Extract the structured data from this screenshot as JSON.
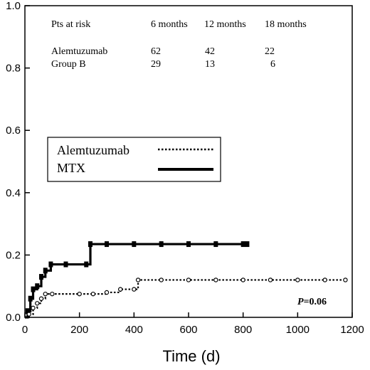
{
  "chart_data": {
    "type": "line",
    "step": true,
    "title": "",
    "xlabel": "Time (d)",
    "ylabel": "",
    "xlim": [
      0,
      1200
    ],
    "ylim": [
      0,
      1.0
    ],
    "xticks": [
      "0",
      "200",
      "400",
      "600",
      "800",
      "1000",
      "1200"
    ],
    "yticks": [
      "0.0",
      "0.2",
      "0.4",
      "0.6",
      "0.8",
      "1.0"
    ],
    "grid": false,
    "legend": {
      "placement": "middle-left",
      "entries": [
        {
          "name": "Alemtuzumab",
          "style": "dotted"
        },
        {
          "name": "MTX",
          "style": "solid"
        }
      ]
    },
    "series": [
      {
        "name": "MTX",
        "style": "solid",
        "x": [
          0,
          10,
          20,
          30,
          45,
          60,
          75,
          95,
          150,
          225,
          240,
          300,
          400,
          500,
          600,
          700,
          800,
          815
        ],
        "y": [
          0,
          0.02,
          0.06,
          0.09,
          0.1,
          0.13,
          0.15,
          0.17,
          0.17,
          0.17,
          0.235,
          0.235,
          0.235,
          0.235,
          0.235,
          0.235,
          0.235,
          0.235
        ]
      },
      {
        "name": "Alemtuzumab",
        "style": "dotted",
        "x": [
          0,
          15,
          30,
          45,
          60,
          75,
          100,
          200,
          250,
          300,
          350,
          400,
          415,
          500,
          600,
          700,
          800,
          900,
          1000,
          1100,
          1175
        ],
        "y": [
          0,
          0.01,
          0.03,
          0.045,
          0.06,
          0.075,
          0.075,
          0.075,
          0.075,
          0.08,
          0.09,
          0.09,
          0.12,
          0.12,
          0.12,
          0.12,
          0.12,
          0.12,
          0.12,
          0.12,
          0.12
        ]
      }
    ],
    "risk_table": {
      "header": [
        "Pts at risk",
        "6 months",
        "12 months",
        "18 months"
      ],
      "rows": [
        {
          "label": "Alemtuzumab",
          "values": [
            "62",
            "42",
            "22"
          ]
        },
        {
          "label": "Group B",
          "values": [
            "29",
            "13",
            "6"
          ]
        }
      ]
    },
    "annotation": {
      "prefix": "P",
      "text": "=0.06"
    }
  }
}
